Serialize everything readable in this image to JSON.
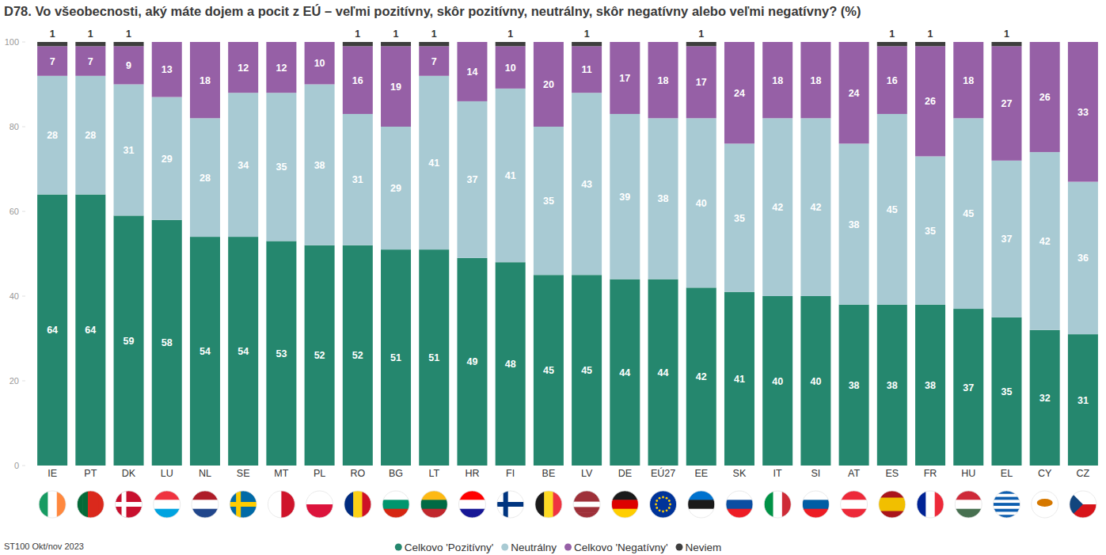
{
  "chart_data": {
    "type": "bar",
    "title": "D78. Vo všeobecnosti, aký máte dojem a pocit z EÚ – veľmi pozitívny, skôr pozitívny, neutrálny, skôr negatívny alebo veľmi negatívny? (%)",
    "source": "ST100 Okt/nov 2023",
    "categories": [
      "IE",
      "PT",
      "DK",
      "LU",
      "NL",
      "SE",
      "MT",
      "PL",
      "RO",
      "BG",
      "LT",
      "HR",
      "FI",
      "BE",
      "LV",
      "DE",
      "EÚ27",
      "EE",
      "SK",
      "IT",
      "SI",
      "AT",
      "ES",
      "FR",
      "HU",
      "EL",
      "CY",
      "CZ"
    ],
    "series": [
      {
        "name": "Celkovo 'Pozitívny'",
        "color": "#25876e",
        "values": [
          64,
          64,
          59,
          58,
          54,
          54,
          53,
          52,
          52,
          51,
          51,
          49,
          48,
          45,
          45,
          44,
          44,
          42,
          41,
          40,
          40,
          38,
          38,
          38,
          37,
          35,
          32,
          31
        ]
      },
      {
        "name": "Neutrálny",
        "color": "#a8cad3",
        "values": [
          28,
          28,
          31,
          29,
          28,
          34,
          35,
          38,
          31,
          29,
          41,
          37,
          41,
          35,
          43,
          39,
          38,
          40,
          35,
          42,
          42,
          38,
          45,
          35,
          45,
          37,
          42,
          36
        ]
      },
      {
        "name": "Celkovo 'Negatívny'",
        "color": "#9660a6",
        "values": [
          7,
          7,
          9,
          13,
          18,
          12,
          12,
          10,
          16,
          19,
          7,
          14,
          10,
          20,
          11,
          17,
          18,
          17,
          24,
          18,
          18,
          24,
          16,
          26,
          18,
          27,
          26,
          33
        ]
      },
      {
        "name": "Neviem",
        "color": "#3e3e3e",
        "values": [
          1,
          1,
          1,
          0,
          0,
          0,
          0,
          0,
          1,
          1,
          1,
          0,
          1,
          0,
          1,
          0,
          0,
          1,
          0,
          0,
          0,
          0,
          1,
          1,
          0,
          1,
          0,
          0
        ]
      }
    ],
    "stacked": true,
    "data_labels": true,
    "legend": "bottom",
    "grid": false,
    "ylim": [
      0,
      100
    ],
    "yticks": [
      0,
      20,
      40,
      60,
      80,
      100
    ]
  }
}
